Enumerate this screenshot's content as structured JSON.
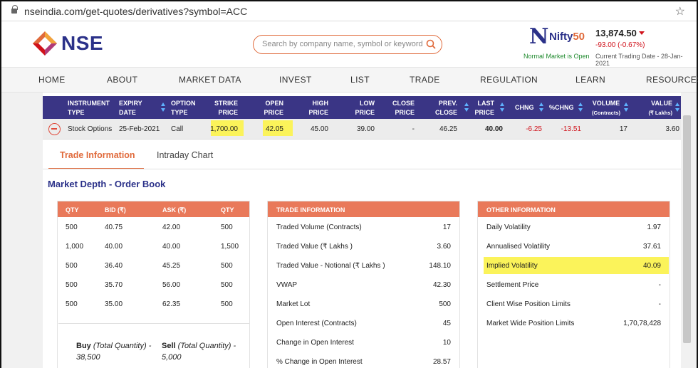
{
  "browser": {
    "url": "nseindia.com/get-quotes/derivatives?symbol=ACC"
  },
  "header": {
    "logo_text": "NSE",
    "search_placeholder": "Search by company name, symbol or keyword",
    "nifty_label_a": "Nifty",
    "nifty_label_b": "50",
    "market_status": "Normal Market is Open",
    "index_value": "13,874.50",
    "index_change": "-93.00 (-0.67%)",
    "trading_date": "Current Trading Date - 28-Jan-2021"
  },
  "nav": [
    "HOME",
    "ABOUT",
    "MARKET DATA",
    "INVEST",
    "LIST",
    "TRADE",
    "REGULATION",
    "LEARN",
    "RESOURCES"
  ],
  "quote_table": {
    "headers": {
      "instrument_type": [
        "INSTRUMENT",
        "TYPE"
      ],
      "expiry_date": [
        "EXPIRY",
        "DATE"
      ],
      "option_type": [
        "OPTION",
        "TYPE"
      ],
      "strike_price": [
        "STRIKE",
        "PRICE"
      ],
      "open_price": [
        "OPEN",
        "PRICE"
      ],
      "high_price": [
        "HIGH",
        "PRICE"
      ],
      "low_price": [
        "LOW",
        "PRICE"
      ],
      "close_price": [
        "CLOSE",
        "PRICE"
      ],
      "prev_close": [
        "PREV.",
        "CLOSE"
      ],
      "last_price": [
        "LAST",
        "PRICE"
      ],
      "chng": "CHNG",
      "pchng": "%CHNG",
      "volume": [
        "VOLUME",
        "(Contracts)"
      ],
      "value": [
        "VALUE",
        "(₹ Lakhs)"
      ]
    },
    "row": {
      "instrument_type": "Stock Options",
      "expiry_date": "25-Feb-2021",
      "option_type": "Call",
      "strike_price": "1,700.00",
      "open_price": "42.05",
      "high_price": "45.00",
      "low_price": "39.00",
      "close_price": "-",
      "prev_close": "46.25",
      "last_price": "40.00",
      "chng": "-6.25",
      "pchng": "-13.51",
      "volume": "17",
      "value": "3.60"
    }
  },
  "tabs": {
    "active": "Trade Information",
    "other": "Intraday Chart"
  },
  "section_title": "Market Depth - Order Book",
  "order_book": {
    "headers": [
      "QTY",
      "BID (₹)",
      "ASK (₹)",
      "QTY"
    ],
    "rows": [
      [
        "500",
        "40.75",
        "42.00",
        "500"
      ],
      [
        "1,000",
        "40.00",
        "40.00",
        "1,500"
      ],
      [
        "500",
        "36.40",
        "45.25",
        "500"
      ],
      [
        "500",
        "35.70",
        "56.00",
        "500"
      ],
      [
        "500",
        "35.00",
        "62.35",
        "500"
      ]
    ],
    "buy_label": "Buy",
    "sell_label": "Sell",
    "total_qty_label": "(Total Quantity) -",
    "buy_total": "38,500",
    "sell_total": "5,000"
  },
  "trade_information": {
    "title": "TRADE INFORMATION",
    "rows": [
      [
        "Traded Volume (Contracts)",
        "17"
      ],
      [
        "Traded Value (₹ Lakhs )",
        "3.60"
      ],
      [
        "Traded Value - Notional (₹ Lakhs )",
        "148.10"
      ],
      [
        "VWAP",
        "42.30"
      ],
      [
        "Market Lot",
        "500"
      ],
      [
        "Open Interest (Contracts)",
        "45"
      ],
      [
        "Change in Open Interest",
        "10"
      ],
      [
        "% Change in Open Interest",
        "28.57"
      ]
    ]
  },
  "other_information": {
    "title": "OTHER INFORMATION",
    "rows": [
      [
        "Daily Volatility",
        "1.97"
      ],
      [
        "Annualised Volatility",
        "37.61"
      ],
      [
        "Implied Volatility",
        "40.09"
      ],
      [
        "Settlement Price",
        "-"
      ],
      [
        "Client Wise Position Limits",
        "-"
      ],
      [
        "Market Wide Position Limits",
        "1,70,78,428"
      ]
    ]
  },
  "colors": {
    "brand_blue": "#2b3189",
    "accent_orange": "#e06a3b",
    "table_header": "#3a3585",
    "box_header": "#e9795a",
    "highlight": "#fbf35a",
    "negative": "#d0121b",
    "positive": "#1f8a2e"
  }
}
